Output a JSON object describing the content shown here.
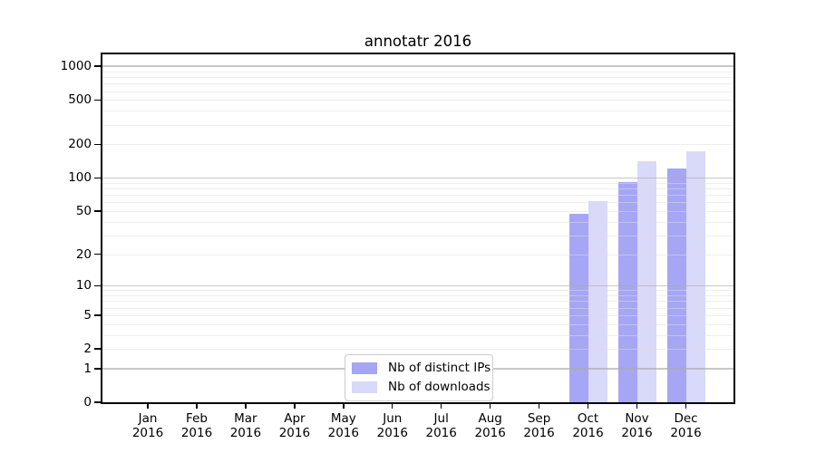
{
  "title": "annotatr 2016",
  "chart_data": {
    "type": "bar",
    "title": "annotatr 2016",
    "xlabel": "",
    "ylabel": "",
    "y_scale": "log10(1+x)",
    "ylim": [
      0,
      1280
    ],
    "grid": true,
    "legend_position": "bottom-center",
    "background_color": "#ffffff",
    "categories": [
      "Jan",
      "Feb",
      "Mar",
      "Apr",
      "May",
      "Jun",
      "Jul",
      "Aug",
      "Sep",
      "Oct",
      "Nov",
      "Dec"
    ],
    "year": "2016",
    "yticks": [
      0,
      1,
      2,
      5,
      10,
      20,
      50,
      100,
      200,
      500,
      1000
    ],
    "major_gridlines": [
      1,
      10,
      100,
      1000
    ],
    "minor_gridlines": [
      2,
      3,
      4,
      5,
      6,
      7,
      8,
      9,
      20,
      30,
      40,
      50,
      60,
      70,
      80,
      90,
      200,
      300,
      400,
      500,
      600,
      700,
      800,
      900
    ],
    "series": [
      {
        "name": "Nb of distinct IPs",
        "color": "#a6a6f4",
        "values": [
          0,
          0,
          0,
          0,
          0,
          0,
          0,
          0,
          0,
          47,
          92,
          122
        ]
      },
      {
        "name": "Nb of downloads",
        "color": "#d9d9fa",
        "values": [
          0,
          0,
          0,
          0,
          0,
          0,
          0,
          0,
          0,
          62,
          142,
          172
        ]
      }
    ]
  }
}
